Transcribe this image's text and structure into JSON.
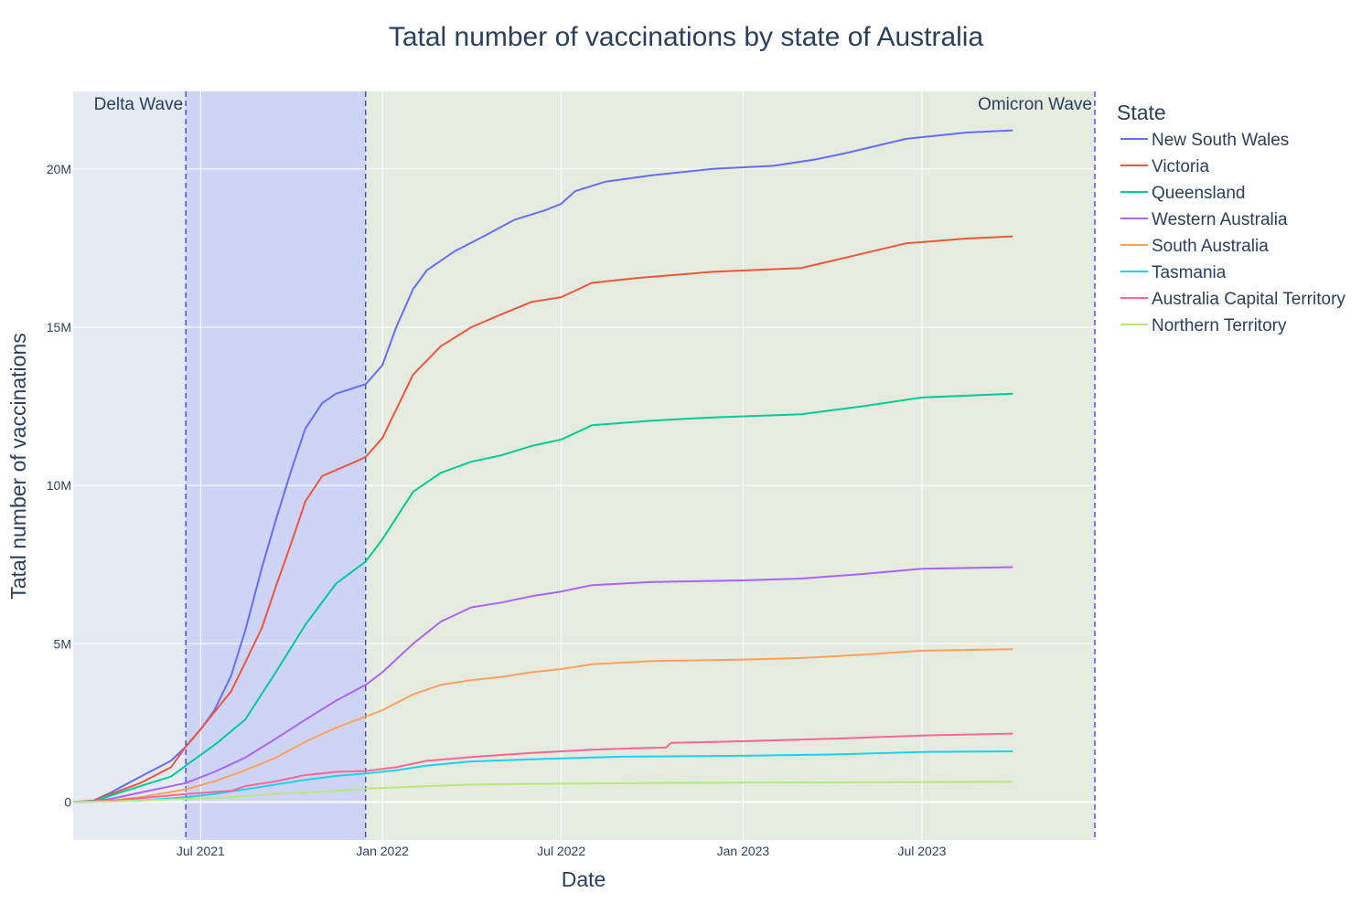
{
  "chart_data": {
    "type": "line",
    "title": "Tatal number of vaccinations by state of Australia",
    "xlabel": "Date",
    "ylabel": "Tatal number of vaccinations",
    "x_ticks": [
      {
        "date": "2021-07-01",
        "label": "Jul 2021"
      },
      {
        "date": "2022-01-01",
        "label": "Jan 2022"
      },
      {
        "date": "2022-07-01",
        "label": "Jul 2022"
      },
      {
        "date": "2023-01-01",
        "label": "Jan 2023"
      },
      {
        "date": "2023-07-01",
        "label": "Jul 2023"
      }
    ],
    "y_ticks": [
      {
        "value": 0,
        "label": "0"
      },
      {
        "value": 5000000,
        "label": "5M"
      },
      {
        "value": 10000000,
        "label": "10M"
      },
      {
        "value": 15000000,
        "label": "15M"
      },
      {
        "value": 20000000,
        "label": "20M"
      }
    ],
    "xlim": [
      "2021-02-22",
      "2023-12-23"
    ],
    "ylim": [
      -1200000,
      22450000
    ],
    "grid": true,
    "legend": {
      "title": "State",
      "position": "right"
    },
    "shaded_regions": [
      {
        "label": "Delta Wave",
        "start": "2021-02-22",
        "end": "2021-06-16",
        "fill": "#e5ebf3"
      },
      {
        "label": "",
        "start": "2021-06-16",
        "end": "2021-12-15",
        "fill": "#ced4f6"
      },
      {
        "label": "Omicron Wave",
        "start": "2021-12-15",
        "end": "2023-12-23",
        "fill": "#e5ecdf"
      }
    ],
    "vlines": [
      "2021-06-16",
      "2021-12-15",
      "2023-12-23"
    ],
    "series": [
      {
        "name": "New South Wales",
        "color": "#636efa",
        "points": [
          [
            "2021-02-22",
            0
          ],
          [
            "2021-03-15",
            50000
          ],
          [
            "2021-04-01",
            300000
          ],
          [
            "2021-05-01",
            800000
          ],
          [
            "2021-06-01",
            1300000
          ],
          [
            "2021-06-16",
            1750000
          ],
          [
            "2021-07-01",
            2300000
          ],
          [
            "2021-07-15",
            2900000
          ],
          [
            "2021-08-01",
            4000000
          ],
          [
            "2021-08-15",
            5400000
          ],
          [
            "2021-09-01",
            7400000
          ],
          [
            "2021-09-15",
            8900000
          ],
          [
            "2021-10-01",
            10500000
          ],
          [
            "2021-10-15",
            11800000
          ],
          [
            "2021-11-01",
            12600000
          ],
          [
            "2021-11-15",
            12900000
          ],
          [
            "2021-12-15",
            13200000
          ],
          [
            "2022-01-01",
            13800000
          ],
          [
            "2022-01-15",
            15000000
          ],
          [
            "2022-02-01",
            16200000
          ],
          [
            "2022-02-15",
            16800000
          ],
          [
            "2022-03-15",
            17400000
          ],
          [
            "2022-04-15",
            17900000
          ],
          [
            "2022-05-15",
            18400000
          ],
          [
            "2022-06-15",
            18700000
          ],
          [
            "2022-07-01",
            18900000
          ],
          [
            "2022-07-15",
            19300000
          ],
          [
            "2022-08-15",
            19600000
          ],
          [
            "2022-10-01",
            19800000
          ],
          [
            "2022-12-01",
            20000000
          ],
          [
            "2023-02-01",
            20100000
          ],
          [
            "2023-03-15",
            20300000
          ],
          [
            "2023-04-15",
            20500000
          ],
          [
            "2023-06-15",
            20950000
          ],
          [
            "2023-08-15",
            21150000
          ],
          [
            "2023-10-01",
            21220000
          ]
        ]
      },
      {
        "name": "Victoria",
        "color": "#ef553b",
        "points": [
          [
            "2021-02-22",
            0
          ],
          [
            "2021-03-15",
            40000
          ],
          [
            "2021-04-01",
            250000
          ],
          [
            "2021-05-01",
            600000
          ],
          [
            "2021-06-01",
            1100000
          ],
          [
            "2021-06-16",
            1750000
          ],
          [
            "2021-07-01",
            2300000
          ],
          [
            "2021-08-01",
            3500000
          ],
          [
            "2021-08-15",
            4400000
          ],
          [
            "2021-09-01",
            5500000
          ],
          [
            "2021-09-15",
            6800000
          ],
          [
            "2021-10-01",
            8200000
          ],
          [
            "2021-10-15",
            9500000
          ],
          [
            "2021-11-01",
            10300000
          ],
          [
            "2021-12-01",
            10700000
          ],
          [
            "2021-12-15",
            10900000
          ],
          [
            "2022-01-01",
            11500000
          ],
          [
            "2022-02-01",
            13500000
          ],
          [
            "2022-03-01",
            14400000
          ],
          [
            "2022-04-01",
            15000000
          ],
          [
            "2022-05-01",
            15400000
          ],
          [
            "2022-06-01",
            15800000
          ],
          [
            "2022-07-01",
            15950000
          ],
          [
            "2022-08-01",
            16400000
          ],
          [
            "2022-09-15",
            16550000
          ],
          [
            "2022-12-01",
            16750000
          ],
          [
            "2023-03-01",
            16870000
          ],
          [
            "2023-04-15",
            17200000
          ],
          [
            "2023-06-15",
            17650000
          ],
          [
            "2023-08-15",
            17800000
          ],
          [
            "2023-10-01",
            17870000
          ]
        ]
      },
      {
        "name": "Queensland",
        "color": "#00cc96",
        "points": [
          [
            "2021-02-22",
            0
          ],
          [
            "2021-03-15",
            30000
          ],
          [
            "2021-04-01",
            200000
          ],
          [
            "2021-05-01",
            500000
          ],
          [
            "2021-06-01",
            800000
          ],
          [
            "2021-06-16",
            1150000
          ],
          [
            "2021-07-15",
            1800000
          ],
          [
            "2021-08-15",
            2600000
          ],
          [
            "2021-09-15",
            4100000
          ],
          [
            "2021-10-15",
            5600000
          ],
          [
            "2021-11-15",
            6900000
          ],
          [
            "2021-12-15",
            7600000
          ],
          [
            "2022-01-01",
            8300000
          ],
          [
            "2022-02-01",
            9800000
          ],
          [
            "2022-03-01",
            10400000
          ],
          [
            "2022-04-01",
            10750000
          ],
          [
            "2022-05-01",
            10950000
          ],
          [
            "2022-06-01",
            11250000
          ],
          [
            "2022-07-01",
            11450000
          ],
          [
            "2022-08-01",
            11900000
          ],
          [
            "2022-10-01",
            12050000
          ],
          [
            "2022-12-01",
            12150000
          ],
          [
            "2023-03-01",
            12250000
          ],
          [
            "2023-05-01",
            12500000
          ],
          [
            "2023-07-01",
            12780000
          ],
          [
            "2023-10-01",
            12900000
          ]
        ]
      },
      {
        "name": "Western Australia",
        "color": "#ab63fa",
        "points": [
          [
            "2021-02-22",
            0
          ],
          [
            "2021-03-15",
            20000
          ],
          [
            "2021-04-01",
            100000
          ],
          [
            "2021-05-01",
            300000
          ],
          [
            "2021-06-16",
            600000
          ],
          [
            "2021-07-15",
            950000
          ],
          [
            "2021-08-15",
            1400000
          ],
          [
            "2021-09-15",
            2000000
          ],
          [
            "2021-10-15",
            2600000
          ],
          [
            "2021-11-15",
            3200000
          ],
          [
            "2021-12-15",
            3700000
          ],
          [
            "2022-01-01",
            4100000
          ],
          [
            "2022-02-01",
            5000000
          ],
          [
            "2022-03-01",
            5700000
          ],
          [
            "2022-04-01",
            6150000
          ],
          [
            "2022-05-01",
            6300000
          ],
          [
            "2022-06-01",
            6500000
          ],
          [
            "2022-07-01",
            6650000
          ],
          [
            "2022-08-01",
            6850000
          ],
          [
            "2022-10-01",
            6950000
          ],
          [
            "2023-01-01",
            7000000
          ],
          [
            "2023-03-01",
            7060000
          ],
          [
            "2023-05-01",
            7200000
          ],
          [
            "2023-07-01",
            7370000
          ],
          [
            "2023-10-01",
            7420000
          ]
        ]
      },
      {
        "name": "South Australia",
        "color": "#ffa15a",
        "points": [
          [
            "2021-02-22",
            0
          ],
          [
            "2021-03-15",
            10000
          ],
          [
            "2021-04-01",
            50000
          ],
          [
            "2021-05-01",
            150000
          ],
          [
            "2021-06-16",
            400000
          ],
          [
            "2021-07-15",
            650000
          ],
          [
            "2021-08-15",
            1000000
          ],
          [
            "2021-09-15",
            1400000
          ],
          [
            "2021-10-15",
            1900000
          ],
          [
            "2021-11-15",
            2350000
          ],
          [
            "2021-12-15",
            2700000
          ],
          [
            "2022-01-01",
            2900000
          ],
          [
            "2022-02-01",
            3400000
          ],
          [
            "2022-03-01",
            3700000
          ],
          [
            "2022-04-01",
            3850000
          ],
          [
            "2022-05-01",
            3950000
          ],
          [
            "2022-06-01",
            4100000
          ],
          [
            "2022-07-01",
            4200000
          ],
          [
            "2022-08-01",
            4350000
          ],
          [
            "2022-10-01",
            4450000
          ],
          [
            "2023-01-01",
            4500000
          ],
          [
            "2023-03-01",
            4550000
          ],
          [
            "2023-05-01",
            4650000
          ],
          [
            "2023-07-01",
            4780000
          ],
          [
            "2023-10-01",
            4830000
          ]
        ]
      },
      {
        "name": "Tasmania",
        "color": "#19d3f3",
        "points": [
          [
            "2021-02-22",
            0
          ],
          [
            "2021-04-01",
            20000
          ],
          [
            "2021-05-01",
            50000
          ],
          [
            "2021-06-16",
            150000
          ],
          [
            "2021-07-15",
            250000
          ],
          [
            "2021-08-15",
            400000
          ],
          [
            "2021-09-15",
            550000
          ],
          [
            "2021-10-15",
            700000
          ],
          [
            "2021-11-15",
            820000
          ],
          [
            "2021-12-15",
            900000
          ],
          [
            "2022-01-15",
            1000000
          ],
          [
            "2022-02-15",
            1150000
          ],
          [
            "2022-04-01",
            1280000
          ],
          [
            "2022-06-01",
            1350000
          ],
          [
            "2022-07-01",
            1380000
          ],
          [
            "2022-09-01",
            1430000
          ],
          [
            "2023-01-01",
            1460000
          ],
          [
            "2023-04-01",
            1500000
          ],
          [
            "2023-07-01",
            1580000
          ],
          [
            "2023-10-01",
            1600000
          ]
        ]
      },
      {
        "name": "Australia Capital Territory",
        "color": "#ff6692",
        "points": [
          [
            "2021-02-22",
            0
          ],
          [
            "2021-04-01",
            40000
          ],
          [
            "2021-05-01",
            120000
          ],
          [
            "2021-06-16",
            250000
          ],
          [
            "2021-08-01",
            350000
          ],
          [
            "2021-08-15",
            500000
          ],
          [
            "2021-09-15",
            650000
          ],
          [
            "2021-10-15",
            850000
          ],
          [
            "2021-11-15",
            950000
          ],
          [
            "2021-12-15",
            980000
          ],
          [
            "2022-01-15",
            1100000
          ],
          [
            "2022-02-15",
            1300000
          ],
          [
            "2022-04-01",
            1420000
          ],
          [
            "2022-06-01",
            1550000
          ],
          [
            "2022-08-01",
            1650000
          ],
          [
            "2022-09-15",
            1700000
          ],
          [
            "2022-10-15",
            1720000
          ],
          [
            "2022-10-20",
            1870000
          ],
          [
            "2023-01-01",
            1920000
          ],
          [
            "2023-04-01",
            2000000
          ],
          [
            "2023-07-01",
            2100000
          ],
          [
            "2023-10-01",
            2160000
          ]
        ]
      },
      {
        "name": "Northern Territory",
        "color": "#b6e880",
        "points": [
          [
            "2021-02-22",
            0
          ],
          [
            "2021-04-01",
            15000
          ],
          [
            "2021-05-01",
            50000
          ],
          [
            "2021-06-16",
            100000
          ],
          [
            "2021-08-01",
            150000
          ],
          [
            "2021-09-15",
            250000
          ],
          [
            "2021-11-15",
            350000
          ],
          [
            "2021-12-15",
            420000
          ],
          [
            "2022-02-01",
            480000
          ],
          [
            "2022-04-01",
            550000
          ],
          [
            "2022-07-01",
            580000
          ],
          [
            "2022-10-01",
            600000
          ],
          [
            "2023-01-01",
            610000
          ],
          [
            "2023-04-01",
            620000
          ],
          [
            "2023-07-01",
            630000
          ],
          [
            "2023-10-01",
            640000
          ]
        ]
      }
    ]
  }
}
